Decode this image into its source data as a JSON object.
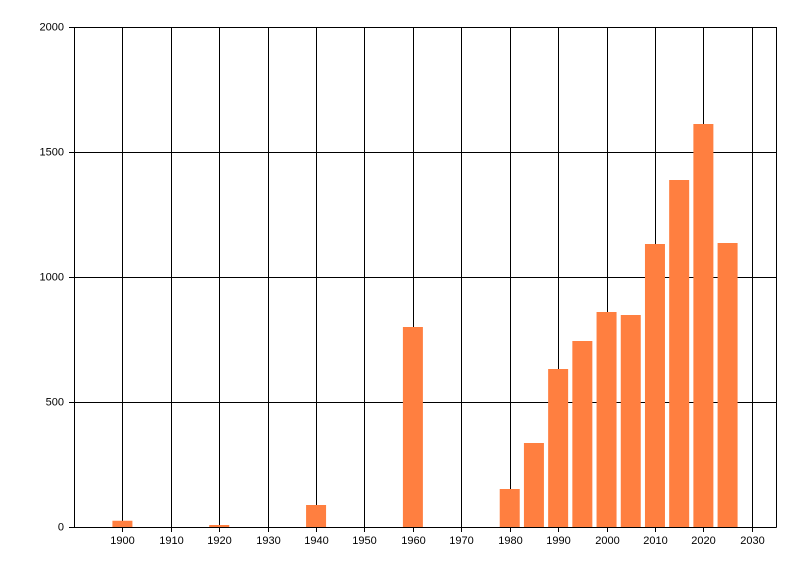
{
  "chart_data": {
    "type": "bar",
    "x": [
      1900,
      1920,
      1940,
      1960,
      1980,
      1985,
      1990,
      1995,
      2000,
      2005,
      2010,
      2015,
      2020,
      2025
    ],
    "values": [
      25,
      8,
      88,
      800,
      152,
      336,
      632,
      744,
      860,
      848,
      1132,
      1388,
      1612,
      1136
    ],
    "color": "#ff7f40",
    "xlim": [
      1890,
      2035
    ],
    "xticks": [
      1900,
      1910,
      1920,
      1930,
      1940,
      1950,
      1960,
      1970,
      1980,
      1990,
      2000,
      2010,
      2020,
      2030
    ],
    "ylim": [
      0,
      2000
    ],
    "yticks": [
      0,
      500,
      1000,
      1500,
      2000
    ],
    "grid": true
  }
}
